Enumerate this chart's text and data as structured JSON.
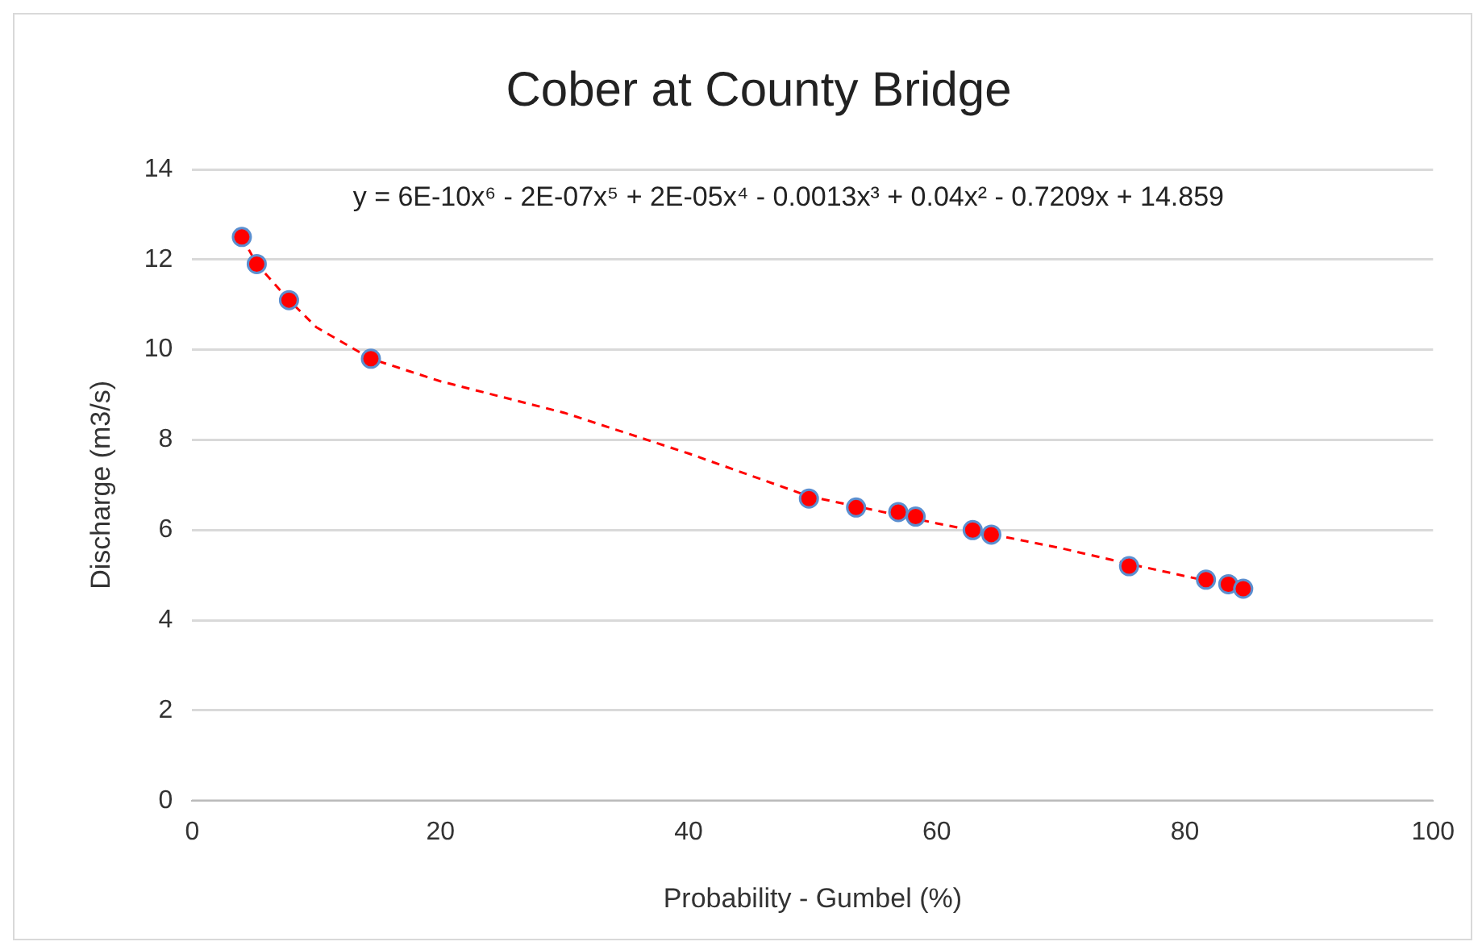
{
  "chart_data": {
    "type": "scatter",
    "title": "Cober at County Bridge",
    "xlabel": "Probability - Gumbel (%)",
    "ylabel": "Discharge (m3/s)",
    "xlim": [
      0,
      100
    ],
    "xticks": [
      0,
      20,
      40,
      60,
      80,
      100
    ],
    "ylim": [
      0,
      14
    ],
    "yticks": [
      0,
      2,
      4,
      6,
      8,
      10,
      12,
      14
    ],
    "grid": "y",
    "legend": false,
    "annotations": [
      "y = 6E-10x⁶ - 2E-07x⁵ + 2E-05x⁴ - 0.0013x³ + 0.04x² - 0.7209x + 14.859"
    ],
    "series": [
      {
        "type": "scatter",
        "color": "#ff0000",
        "marker": "circle",
        "x": [
          4.0,
          5.2,
          7.8,
          14.4,
          49.7,
          53.5,
          56.9,
          58.3,
          62.9,
          64.4,
          75.5,
          81.7,
          83.5,
          84.7
        ],
        "values": [
          12.5,
          11.9,
          11.1,
          9.8,
          6.7,
          6.5,
          6.4,
          6.3,
          6.0,
          5.9,
          5.2,
          4.9,
          4.8,
          4.7
        ]
      },
      {
        "type": "line",
        "color": "#ff0000",
        "marker": "none",
        "line_style": "dashed",
        "x": [
          4.0,
          5.2,
          7.8,
          10,
          14.4,
          20,
          30,
          40,
          49.7,
          60,
          70,
          75.5,
          84.7
        ],
        "values": [
          12.5,
          11.9,
          11.1,
          10.5,
          9.8,
          9.3,
          8.6,
          7.7,
          6.75,
          6.15,
          5.6,
          5.25,
          4.7
        ]
      }
    ]
  }
}
